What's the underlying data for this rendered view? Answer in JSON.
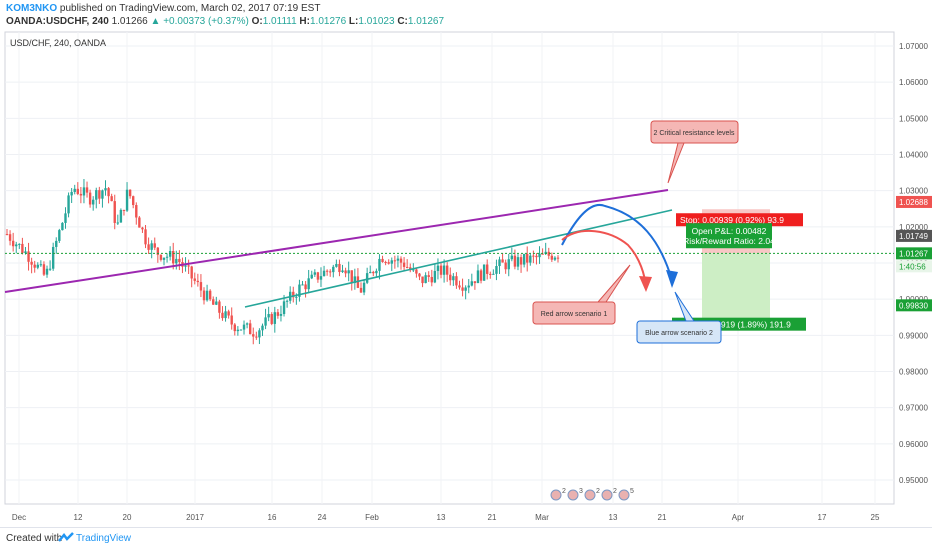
{
  "header": {
    "author": "KOM3NKO",
    "published": "published on TradingView.com, March 02, 2017 07:19 EST",
    "symbol": "OANDA:USDCHF, 240",
    "last": "1.01266",
    "change": "+0.00373 (+0.37%)",
    "ohlc_label_o": "O:",
    "ohlc_o": "1.01111",
    "ohlc_label_h": "H:",
    "ohlc_h": "1.01276",
    "ohlc_label_l": "L:",
    "ohlc_l": "1.01023",
    "ohlc_label_c": "C:",
    "ohlc_c": "1.01267"
  },
  "colors": {
    "up": "#26a69a",
    "down": "#ef5350",
    "purple_trendline": "#9c27b0",
    "green_trendline": "#26a69a",
    "blue_arrow": "#1e6fd9",
    "red_arrow": "#ef5350",
    "stop_zone": "#f8c7c5",
    "target_zone": "#cdeec5",
    "brand": "#2196f3"
  },
  "chart_data": {
    "type": "candlestick",
    "title": "USD/CHF, 240, OANDA",
    "y_axis": {
      "min": 0.945,
      "max": 1.07,
      "ticks": [
        "1.07000",
        "1.06000",
        "1.05000",
        "1.04000",
        "1.03000",
        "1.02000",
        "1.01000",
        "1.00000",
        "0.99000",
        "0.98000",
        "0.97000",
        "0.96000",
        "0.95000"
      ]
    },
    "x_axis": {
      "ticks": [
        "Dec",
        "12",
        "20",
        "2017",
        "16",
        "24",
        "Feb",
        "13",
        "21",
        "Mar",
        "13",
        "21",
        "Apr",
        "17",
        "25"
      ]
    },
    "current_price": 1.01267,
    "current_price_label": "1.01267",
    "countdown_label": "1:40:56",
    "axis_markers": [
      {
        "label": "1.02688",
        "value": 1.02688,
        "color": "#ef5350"
      },
      {
        "label": "1.01749",
        "value": 1.01749,
        "color": "#555555"
      },
      {
        "label": "0.99830",
        "value": 0.9983,
        "color": "#1aa035"
      }
    ],
    "close_path": [
      {
        "x": 0,
        "close": 1.018
      },
      {
        "x": 0.04,
        "close": 1.012
      },
      {
        "x": 0.07,
        "close": 1.006
      },
      {
        "x": 0.1,
        "close": 1.021
      },
      {
        "x": 0.12,
        "close": 1.031
      },
      {
        "x": 0.15,
        "close": 1.028
      },
      {
        "x": 0.18,
        "close": 1.031
      },
      {
        "x": 0.2,
        "close": 1.02
      },
      {
        "x": 0.22,
        "close": 1.03
      },
      {
        "x": 0.25,
        "close": 1.017
      },
      {
        "x": 0.27,
        "close": 1.013
      },
      {
        "x": 0.31,
        "close": 1.011
      },
      {
        "x": 0.34,
        "close": 1.005
      },
      {
        "x": 0.37,
        "close": 0.999
      },
      {
        "x": 0.41,
        "close": 0.993
      },
      {
        "x": 0.45,
        "close": 0.991
      },
      {
        "x": 0.49,
        "close": 0.996
      },
      {
        "x": 0.53,
        "close": 1.003
      },
      {
        "x": 0.57,
        "close": 1.007
      },
      {
        "x": 0.61,
        "close": 1.01
      },
      {
        "x": 0.64,
        "close": 1.002
      },
      {
        "x": 0.68,
        "close": 1.012
      },
      {
        "x": 0.72,
        "close": 1.01
      },
      {
        "x": 0.75,
        "close": 1.005
      },
      {
        "x": 0.79,
        "close": 1.008
      },
      {
        "x": 0.83,
        "close": 1.004
      },
      {
        "x": 0.87,
        "close": 1.008
      },
      {
        "x": 0.91,
        "close": 1.01
      },
      {
        "x": 0.95,
        "close": 1.011
      },
      {
        "x": 1,
        "close": 1.0127
      }
    ],
    "position": {
      "stop_label": "Stop: 0.00939 (0.92%) 93.9",
      "pnl_label": "Open P&L: 0.00482",
      "rr_label": "Risk/Reward Ratio: 2.04",
      "target_label": "Target: 0.01919 (1.89%) 191.9",
      "entry": 1.0127,
      "stop": 1.0221,
      "target": 0.9935
    },
    "annotations": [
      {
        "text": "2 Critical resistance levels"
      },
      {
        "text": "Red arrow scenario 1"
      },
      {
        "text": "Blue arrow scenario 2"
      }
    ],
    "event_markers": [
      "2",
      "3",
      "2",
      "2",
      "5"
    ]
  },
  "footer": {
    "created_with": "Created with",
    "brand": "TradingView"
  }
}
